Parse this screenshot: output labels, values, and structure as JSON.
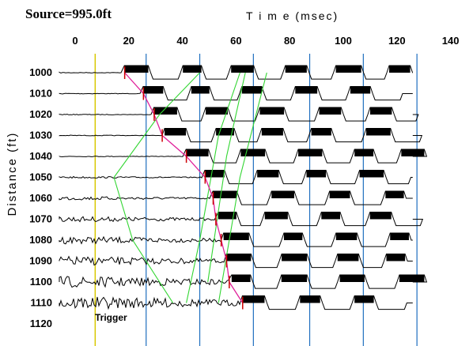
{
  "header": {
    "source_label": "Source=995.0ft"
  },
  "chart_data": {
    "type": "seismic-traces",
    "xlabel": "T i m e (msec)",
    "ylabel": "Distance (ft)",
    "xlim": [
      0,
      140
    ],
    "x_ticks": [
      0,
      20,
      40,
      60,
      80,
      100,
      120,
      140
    ],
    "y_ticks": [
      1000,
      1010,
      1020,
      1030,
      1040,
      1050,
      1060,
      1070,
      1080,
      1090,
      1100,
      1110,
      1120
    ],
    "trigger_label": "Trigger",
    "trigger_time": 6,
    "vertical_gridlines_ms": [
      25,
      45,
      65,
      86,
      106,
      126
    ],
    "picks": [
      {
        "depth": 1000,
        "time": 17
      },
      {
        "depth": 1010,
        "time": 24
      },
      {
        "depth": 1020,
        "time": 28
      },
      {
        "depth": 1030,
        "time": 31
      },
      {
        "depth": 1040,
        "time": 40
      },
      {
        "depth": 1050,
        "time": 47
      },
      {
        "depth": 1060,
        "time": 50
      },
      {
        "depth": 1070,
        "time": 51
      },
      {
        "depth": 1080,
        "time": 53
      },
      {
        "depth": 1090,
        "time": 55
      },
      {
        "depth": 1100,
        "time": 56
      },
      {
        "depth": 1110,
        "time": 61
      }
    ],
    "traces": [
      {
        "depth": 1000,
        "first_break": 16,
        "end_time": 120
      },
      {
        "depth": 1010,
        "first_break": 23,
        "end_time": 120
      },
      {
        "depth": 1020,
        "first_break": 27,
        "end_time": 120
      },
      {
        "depth": 1030,
        "first_break": 31,
        "end_time": 120
      },
      {
        "depth": 1040,
        "first_break": 39,
        "end_time": 120
      },
      {
        "depth": 1050,
        "first_break": 46,
        "end_time": 120
      },
      {
        "depth": 1060,
        "first_break": 49,
        "end_time": 120
      },
      {
        "depth": 1070,
        "first_break": 51,
        "end_time": 120
      },
      {
        "depth": 1080,
        "first_break": 53,
        "end_time": 120
      },
      {
        "depth": 1090,
        "first_break": 54,
        "end_time": 120
      },
      {
        "depth": 1100,
        "first_break": 56,
        "end_time": 120
      },
      {
        "depth": 1110,
        "first_break": 60,
        "end_time": 120
      }
    ],
    "velocity_lines": [
      [
        [
          45,
          1000
        ],
        [
          30,
          1020
        ],
        [
          13,
          1050
        ],
        [
          20,
          1080
        ],
        [
          35,
          1110
        ]
      ],
      [
        [
          60,
          1000
        ],
        [
          52,
          1030
        ],
        [
          45,
          1080
        ],
        [
          40,
          1110
        ]
      ],
      [
        [
          62,
          1000
        ],
        [
          55,
          1040
        ],
        [
          48,
          1100
        ]
      ],
      [
        [
          70,
          1000
        ],
        [
          60,
          1050
        ],
        [
          52,
          1110
        ]
      ]
    ],
    "colors": {
      "trace": "#000000",
      "gridline": "#1f6fbf",
      "trigger": "#d8c800",
      "pick_line": "#e0209a",
      "pick_tick": "#cc0000",
      "velocity": "#33d633"
    }
  }
}
